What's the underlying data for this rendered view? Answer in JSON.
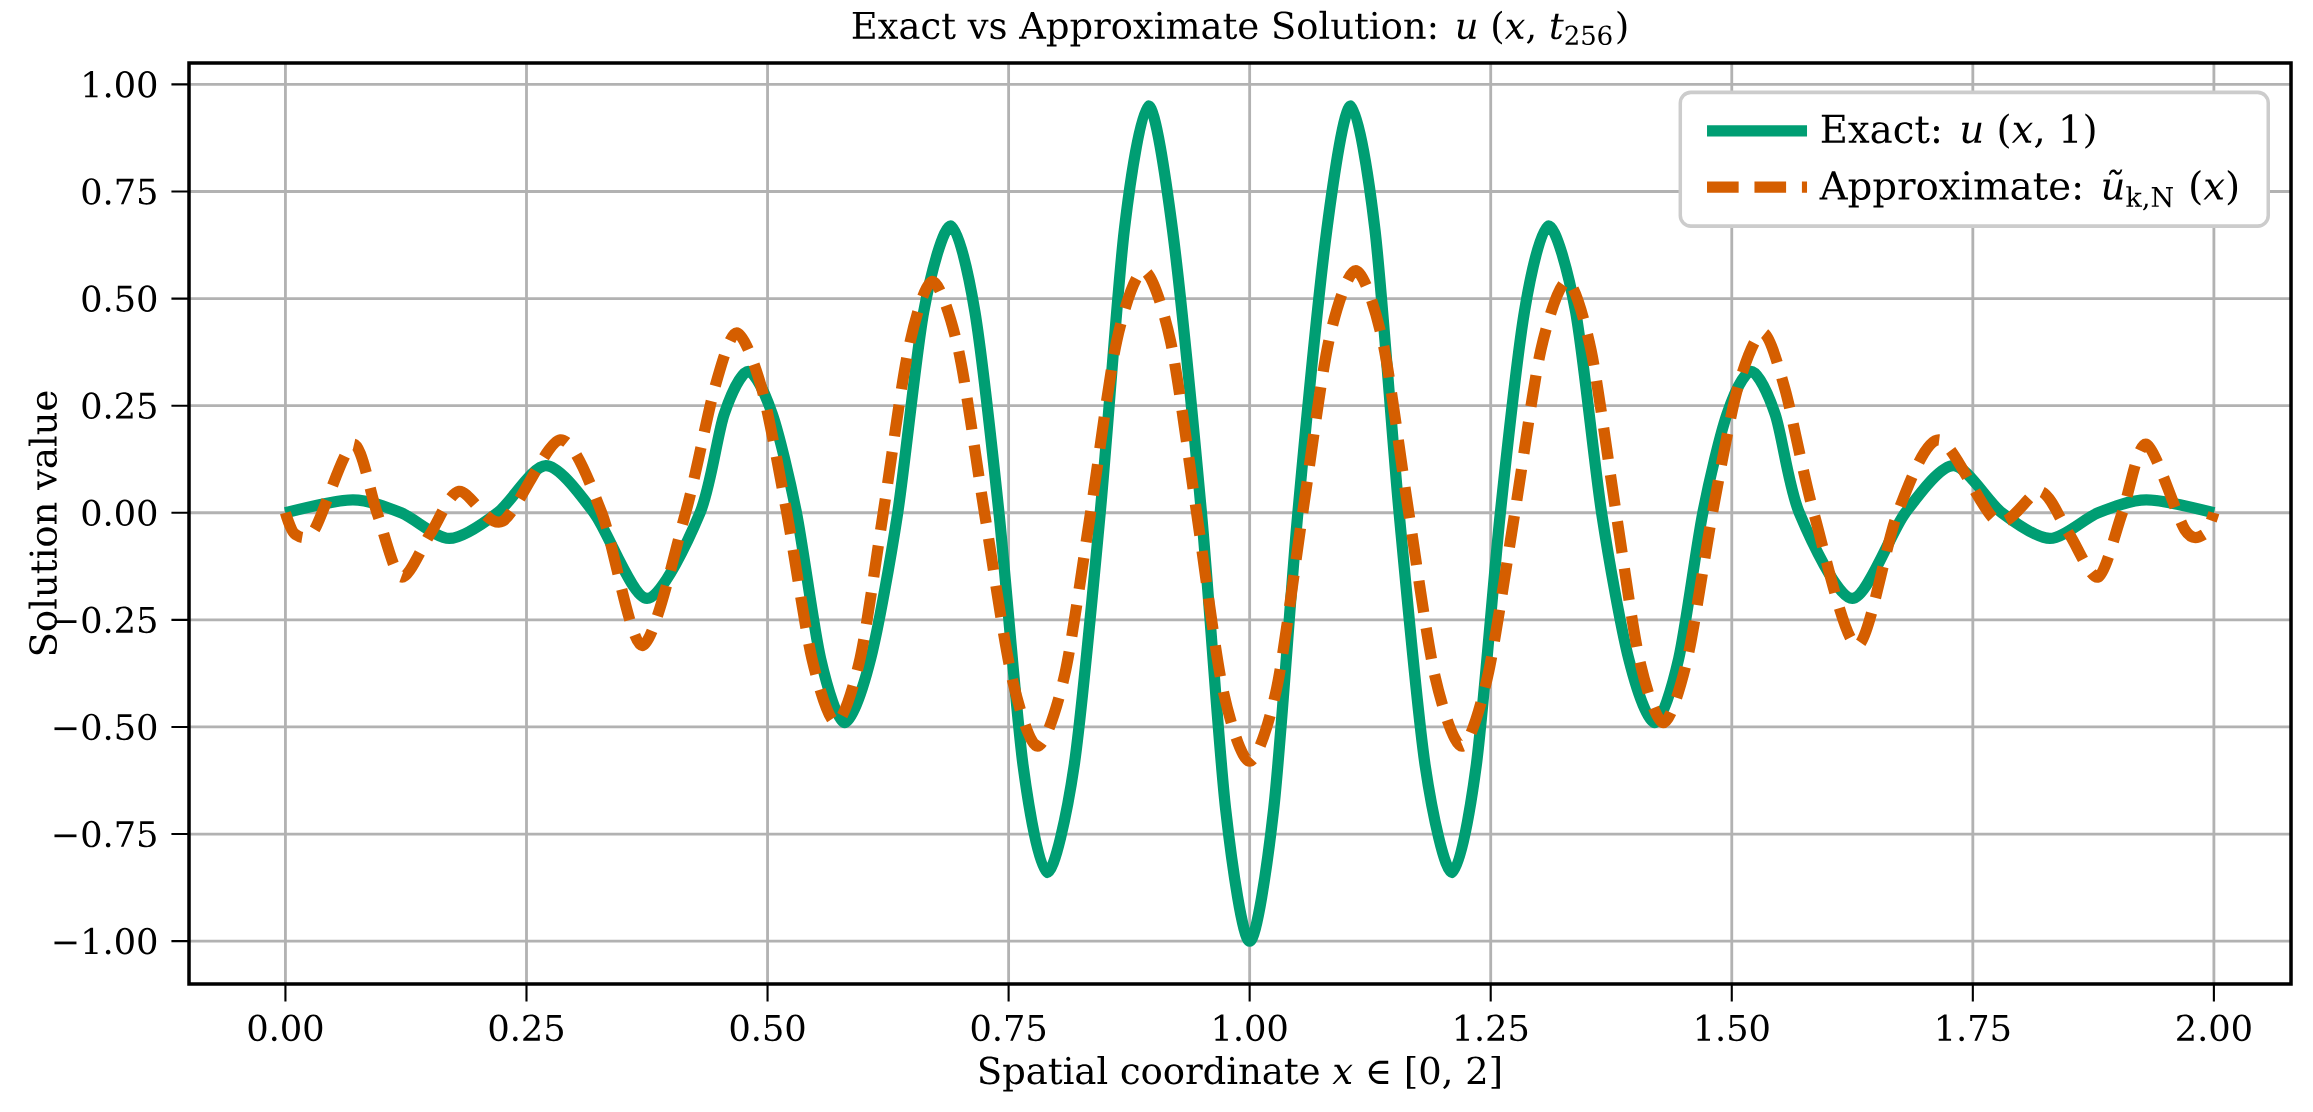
{
  "chart_data": {
    "type": "line",
    "title": "Exact vs Approximate Solution: *u* (*x*, *t*$_{256}$)",
    "xlabel": "Spatial coordinate *x* ∈ [0, 2]",
    "ylabel": "Solution value",
    "xlim": [
      -0.1,
      2.08
    ],
    "ylim": [
      -1.1,
      1.05
    ],
    "xticks": [
      {
        "value": 0,
        "label": "0.00"
      },
      {
        "value": 0.25,
        "label": "0.25"
      },
      {
        "value": 0.5,
        "label": "0.50"
      },
      {
        "value": 0.75,
        "label": "0.75"
      },
      {
        "value": 1,
        "label": "1.00"
      },
      {
        "value": 1.25,
        "label": "1.25"
      },
      {
        "value": 1.5,
        "label": "1.50"
      },
      {
        "value": 1.75,
        "label": "1.75"
      },
      {
        "value": 2,
        "label": "2.00"
      }
    ],
    "yticks": [
      {
        "value": -1,
        "label": "−1.00"
      },
      {
        "value": -0.75,
        "label": "−0.75"
      },
      {
        "value": -0.5,
        "label": "−0.50"
      },
      {
        "value": -0.25,
        "label": "−0.25"
      },
      {
        "value": 0,
        "label": "0.00"
      },
      {
        "value": 0.25,
        "label": "0.25"
      },
      {
        "value": 0.5,
        "label": "0.50"
      },
      {
        "value": 0.75,
        "label": "0.75"
      },
      {
        "value": 1,
        "label": "1.00"
      }
    ],
    "grid": true,
    "legend": "top right",
    "series": [
      {
        "name": "Exact: *u* (*x*, 1)",
        "color": "#009e73",
        "line_style": "solid",
        "x": [
          0,
          0.07,
          0.12,
          0.17,
          0.22,
          0.27,
          0.32,
          0.375,
          0.43,
          0.455,
          0.48,
          0.505,
          0.53,
          0.555,
          0.58,
          0.607,
          0.635,
          0.662,
          0.69,
          0.715,
          0.74,
          0.765,
          0.79,
          0.818,
          0.845,
          0.87,
          0.895,
          0.92,
          0.95,
          0.975,
          1.0,
          1.025,
          1.05,
          1.08,
          1.105,
          1.13,
          1.155,
          1.182,
          1.21,
          1.235,
          1.26,
          1.285,
          1.31,
          1.338,
          1.365,
          1.393,
          1.42,
          1.445,
          1.47,
          1.495,
          1.52,
          1.545,
          1.57,
          1.625,
          1.68,
          1.73,
          1.78,
          1.83,
          1.88,
          1.93,
          2.0
        ],
        "values": [
          0,
          0.03,
          0,
          -0.06,
          0,
          0.11,
          0,
          -0.2,
          0,
          0.23,
          0.33,
          0.23,
          0,
          -0.34,
          -0.49,
          -0.34,
          0,
          0.47,
          0.67,
          0.47,
          0,
          -0.59,
          -0.84,
          -0.59,
          0,
          0.66,
          0.95,
          0.66,
          0,
          -0.69,
          -1.0,
          -0.69,
          0,
          0.66,
          0.95,
          0.66,
          0,
          -0.59,
          -0.84,
          -0.59,
          0,
          0.47,
          0.67,
          0.47,
          0,
          -0.34,
          -0.49,
          -0.34,
          0,
          0.23,
          0.33,
          0.23,
          0,
          -0.2,
          0,
          0.11,
          0,
          -0.06,
          0,
          0.03,
          0
        ]
      },
      {
        "name": "Approximate: *ũ*$_{k,N}$ (*x*)",
        "color": "#d55e00",
        "line_style": "dashed",
        "x": [
          0,
          0.01,
          0.03,
          0.07,
          0.095,
          0.12,
          0.15,
          0.18,
          0.225,
          0.285,
          0.328,
          0.37,
          0.415,
          0.445,
          0.468,
          0.494,
          0.52,
          0.546,
          0.571,
          0.596,
          0.62,
          0.646,
          0.671,
          0.698,
          0.725,
          0.753,
          0.78,
          0.808,
          0.835,
          0.862,
          0.89,
          0.918,
          0.945,
          0.972,
          1.0,
          1.028,
          1.055,
          1.082,
          1.11,
          1.138,
          1.165,
          1.192,
          1.22,
          1.247,
          1.275,
          1.302,
          1.329,
          1.354,
          1.38,
          1.404,
          1.429,
          1.454,
          1.48,
          1.506,
          1.532,
          1.555,
          1.585,
          1.63,
          1.672,
          1.715,
          1.775,
          1.82,
          1.85,
          1.88,
          1.905,
          1.93,
          1.97,
          1.99,
          2.0
        ],
        "values": [
          0,
          -0.05,
          -0.04,
          0.16,
          0,
          -0.15,
          -0.05,
          0.05,
          -0.02,
          0.17,
          0,
          -0.31,
          0,
          0.29,
          0.42,
          0.29,
          0,
          -0.34,
          -0.49,
          -0.34,
          0,
          0.38,
          0.54,
          0.38,
          0,
          -0.38,
          -0.545,
          -0.38,
          0,
          0.4,
          0.565,
          0.4,
          0,
          -0.41,
          -0.58,
          -0.41,
          0,
          0.4,
          0.565,
          0.4,
          0,
          -0.38,
          -0.545,
          -0.38,
          0,
          0.38,
          0.54,
          0.38,
          0,
          -0.34,
          -0.49,
          -0.34,
          0,
          0.29,
          0.42,
          0.29,
          0,
          -0.31,
          0,
          0.17,
          -0.02,
          0.05,
          -0.05,
          -0.15,
          0,
          0.16,
          -0.04,
          -0.05,
          0
        ]
      }
    ]
  }
}
